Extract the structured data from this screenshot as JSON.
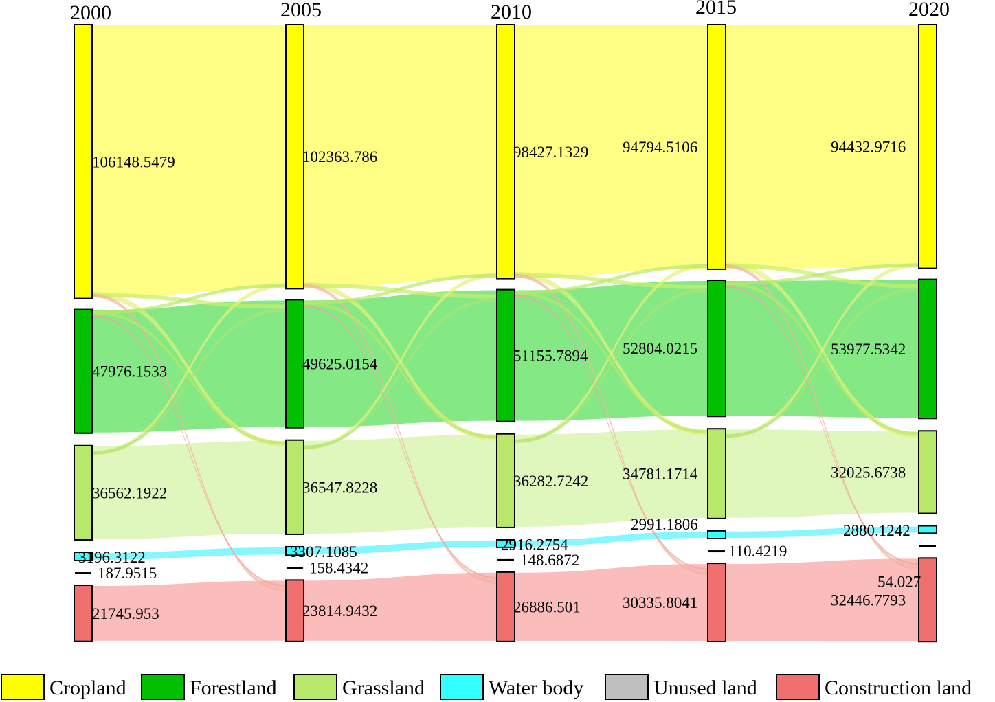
{
  "chart_data": {
    "type": "sankey",
    "title": "",
    "years": [
      "2000",
      "2005",
      "2010",
      "2015",
      "2020"
    ],
    "categories": [
      {
        "key": "cropland",
        "name": "Cropland",
        "color": "#ffff00",
        "flow_color": "#ffff80"
      },
      {
        "key": "forestland",
        "name": "Forestland",
        "color": "#00c000",
        "flow_color": "#7de87d"
      },
      {
        "key": "grassland",
        "name": "Grassland",
        "color": "#b8e86a",
        "flow_color": "#ddf5b8"
      },
      {
        "key": "water",
        "name": "Water body",
        "color": "#33ffff",
        "flow_color": "#7ff5ff"
      },
      {
        "key": "unused",
        "name": "Unused land",
        "color": "#bfbfbf",
        "flow_color": "#dddddd"
      },
      {
        "key": "construction",
        "name": "Construction land",
        "color": "#f07070",
        "flow_color": "#fbb8b8"
      }
    ],
    "values": {
      "2000": {
        "cropland": 106148.5479,
        "forestland": 47976.1533,
        "grassland": 36562.1922,
        "water": 3196.3122,
        "unused": 187.9515,
        "construction": 21745.953
      },
      "2005": {
        "cropland": 102363.786,
        "forestland": 49625.0154,
        "grassland": 36547.8228,
        "water": 3307.1085,
        "unused": 158.4342,
        "construction": 23814.9432
      },
      "2010": {
        "cropland": 98427.1329,
        "forestland": 51155.7894,
        "grassland": 36282.7242,
        "water": 2916.2754,
        "unused": 148.6872,
        "construction": 26886.501
      },
      "2015": {
        "cropland": 94794.5106,
        "forestland": 52804.0215,
        "grassland": 34781.1714,
        "water": 2991.1806,
        "unused": 110.4219,
        "construction": 30335.8041
      },
      "2020": {
        "cropland": 94432.9716,
        "forestland": 53977.5342,
        "grassland": 32025.6738,
        "water": 2880.1242,
        "unused": 54.027,
        "construction": 32446.7793
      }
    },
    "labels": {
      "2000": {
        "cropland": "106148.5479",
        "forestland": "47976.1533",
        "grassland": "36562.1922",
        "water": "3196.3122",
        "unused": "187.9515",
        "construction": "21745.953"
      },
      "2005": {
        "cropland": "102363.786",
        "forestland": "49625.0154",
        "grassland": "36547.8228",
        "water": "3307.1085",
        "unused": "158.4342",
        "construction": "23814.9432"
      },
      "2010": {
        "cropland": "98427.1329",
        "forestland": "51155.7894",
        "grassland": "36282.7242",
        "water": "2916.2754",
        "unused": "148.6872",
        "construction": "26886.501"
      },
      "2015": {
        "cropland": "94794.5106",
        "forestland": "52804.0215",
        "grassland": "34781.1714",
        "water": "2991.1806",
        "unused": "110.4219",
        "construction": "30335.8041"
      },
      "2020": {
        "cropland": "94432.9716",
        "forestland": "53977.5342",
        "grassland": "32025.6738",
        "water": "2880.1242",
        "unused": "54.027",
        "construction": "32446.7793"
      }
    },
    "legend": {
      "placement": "bottom"
    }
  }
}
